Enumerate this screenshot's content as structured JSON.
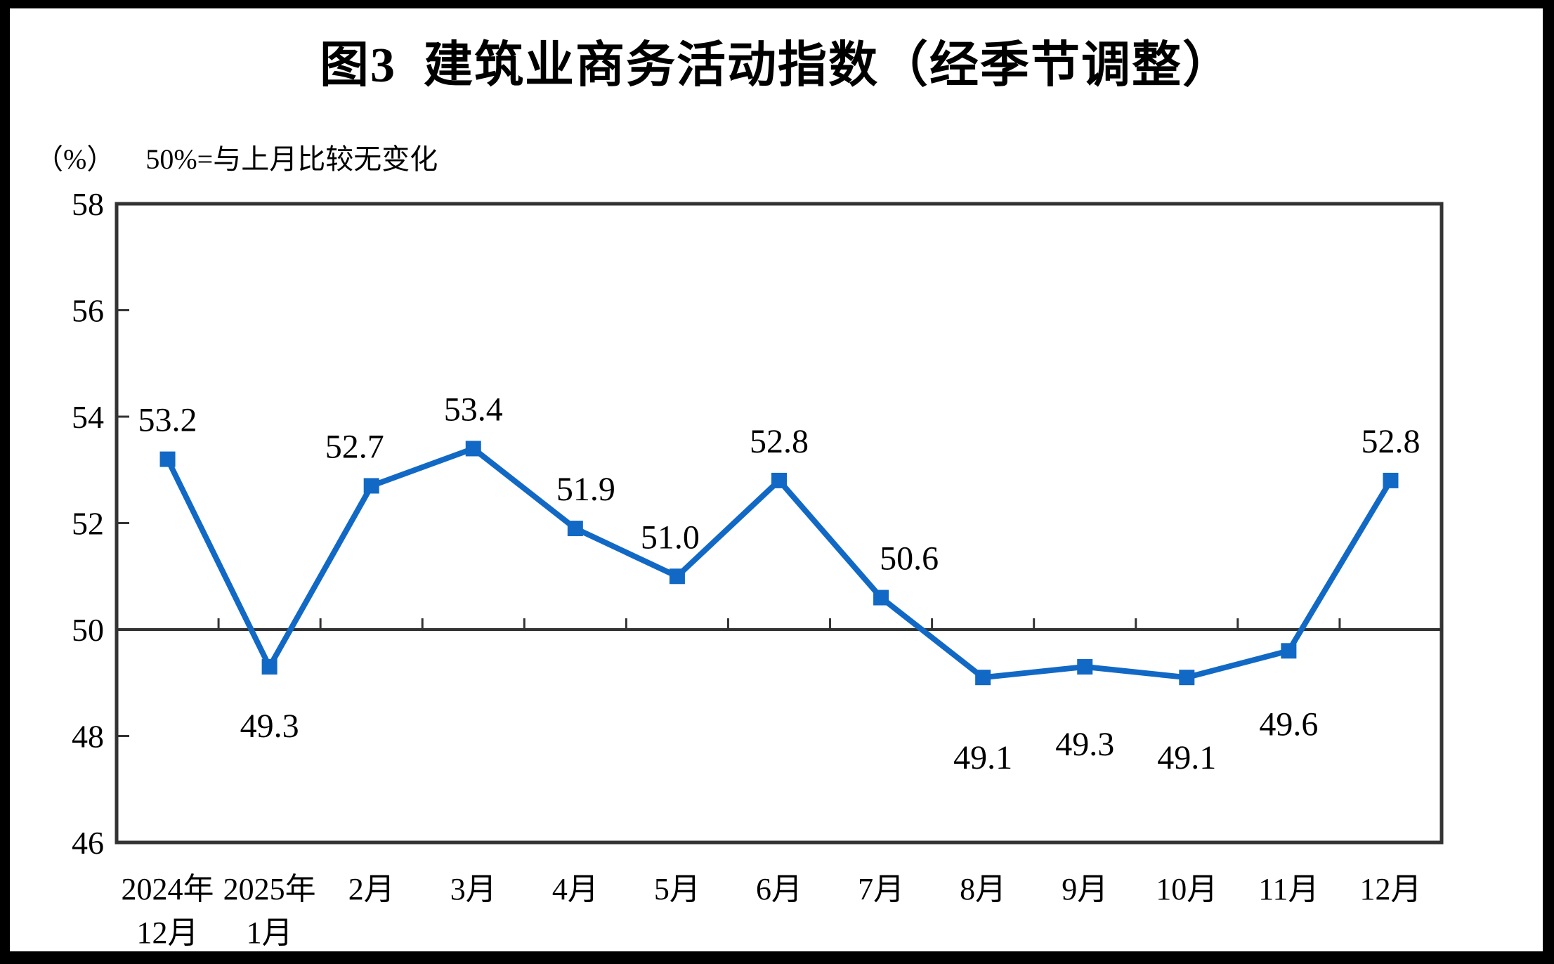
{
  "chart_data": {
    "type": "line",
    "title": "图3  建筑业商务活动指数（经季节调整）",
    "unit": "（%）",
    "note": "50%=与上月比较无变化",
    "categories": [
      [
        "2024年",
        "12月"
      ],
      [
        "2025年",
        "1月"
      ],
      [
        "2月"
      ],
      [
        "3月"
      ],
      [
        "4月"
      ],
      [
        "5月"
      ],
      [
        "6月"
      ],
      [
        "7月"
      ],
      [
        "8月"
      ],
      [
        "9月"
      ],
      [
        "10月"
      ],
      [
        "11月"
      ],
      [
        "12月"
      ]
    ],
    "values": [
      53.2,
      49.3,
      52.7,
      53.4,
      51.9,
      51.0,
      52.8,
      50.6,
      49.1,
      49.3,
      49.1,
      49.6,
      52.8
    ],
    "value_labels": [
      "53.2",
      "49.3",
      "52.7",
      "53.4",
      "51.9",
      "51.0",
      "52.8",
      "50.6",
      "49.1",
      "49.3",
      "49.1",
      "49.6",
      "52.8"
    ],
    "ylim": [
      46,
      58
    ],
    "yticks": [
      46,
      48,
      50,
      52,
      54,
      56,
      58
    ],
    "reference_line": 50,
    "grid": false,
    "legend": "none",
    "marker": "square",
    "line_color": "#1169C5",
    "axis_color": "#333333",
    "text_color": "#000000",
    "label_positions": [
      "above",
      "below",
      "above",
      "above",
      "above",
      "above",
      "above",
      "above",
      "below",
      "below",
      "below",
      "below",
      "above"
    ],
    "label_dy": [
      -40,
      100,
      -40,
      -40,
      -40,
      -40,
      -40,
      -40,
      130,
      126,
      130,
      120,
      -40
    ],
    "label_dx": [
      0,
      0,
      -24,
      0,
      15,
      -10,
      0,
      40,
      0,
      0,
      0,
      0,
      0
    ]
  }
}
